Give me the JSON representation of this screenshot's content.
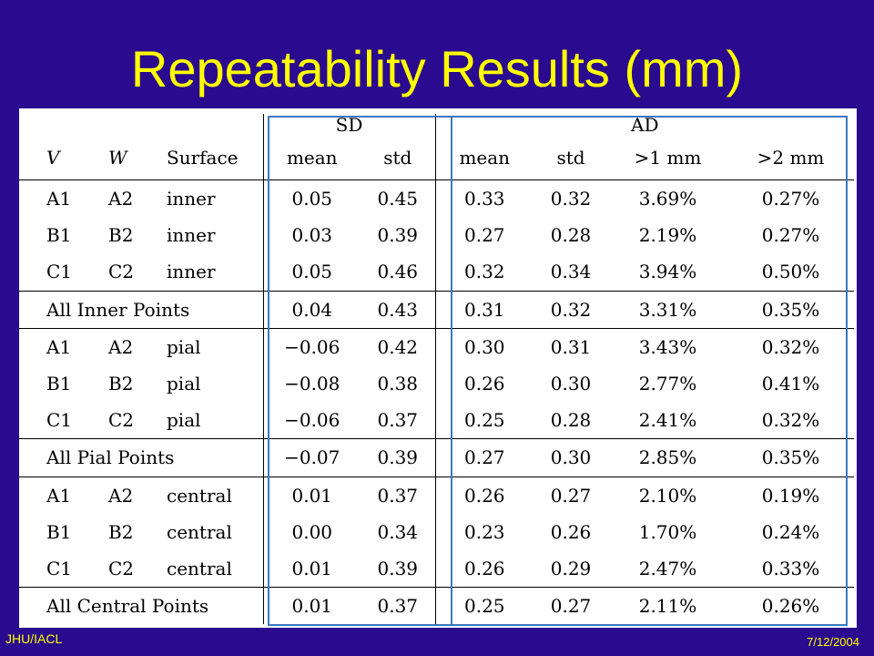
{
  "title": "Repeatability Results (mm)",
  "footer": {
    "left": "JHU/IACL",
    "right": "7/12/2004"
  },
  "table": {
    "groups": {
      "sd": "SD",
      "ad": "AD"
    },
    "headers": [
      "V",
      "W",
      "Surface",
      "mean",
      "std",
      "mean",
      "std",
      ">1 mm",
      ">2 mm"
    ],
    "blocks": [
      {
        "rows": [
          [
            "A1",
            "A2",
            "inner",
            "0.05",
            "0.45",
            "0.33",
            "0.32",
            "3.69%",
            "0.27%"
          ],
          [
            "B1",
            "B2",
            "inner",
            "0.03",
            "0.39",
            "0.27",
            "0.28",
            "2.19%",
            "0.27%"
          ],
          [
            "C1",
            "C2",
            "inner",
            "0.05",
            "0.46",
            "0.32",
            "0.34",
            "3.94%",
            "0.50%"
          ]
        ],
        "summary": [
          "All Inner Points",
          "0.04",
          "0.43",
          "0.31",
          "0.32",
          "3.31%",
          "0.35%"
        ]
      },
      {
        "rows": [
          [
            "A1",
            "A2",
            "pial",
            "−0.06",
            "0.42",
            "0.30",
            "0.31",
            "3.43%",
            "0.32%"
          ],
          [
            "B1",
            "B2",
            "pial",
            "−0.08",
            "0.38",
            "0.26",
            "0.30",
            "2.77%",
            "0.41%"
          ],
          [
            "C1",
            "C2",
            "pial",
            "−0.06",
            "0.37",
            "0.25",
            "0.28",
            "2.41%",
            "0.32%"
          ]
        ],
        "summary": [
          "All Pial Points",
          "−0.07",
          "0.39",
          "0.27",
          "0.30",
          "2.85%",
          "0.35%"
        ]
      },
      {
        "rows": [
          [
            "A1",
            "A2",
            "central",
            "0.01",
            "0.37",
            "0.26",
            "0.27",
            "2.10%",
            "0.19%"
          ],
          [
            "B1",
            "B2",
            "central",
            "0.00",
            "0.34",
            "0.23",
            "0.26",
            "1.70%",
            "0.24%"
          ],
          [
            "C1",
            "C2",
            "central",
            "0.01",
            "0.39",
            "0.26",
            "0.29",
            "2.47%",
            "0.33%"
          ]
        ],
        "summary": [
          "All Central Points",
          "0.01",
          "0.37",
          "0.25",
          "0.27",
          "2.11%",
          "0.26%"
        ]
      }
    ],
    "highlight_color": "#3d77c0"
  }
}
